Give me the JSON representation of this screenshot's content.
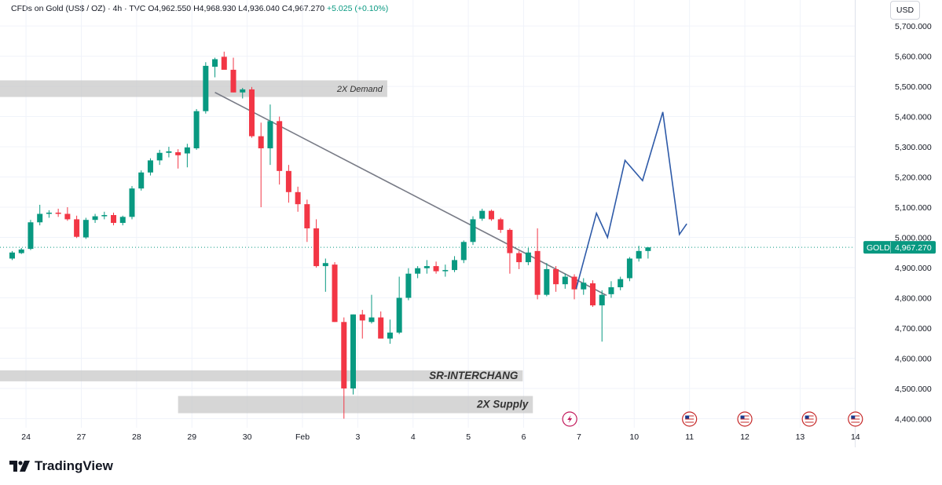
{
  "header": {
    "instrument": "CFDs on Gold (US$ / OZ) · 4h · TVC",
    "open": "O4,962.550",
    "high": "H4,968.930",
    "low": "L4,936.040",
    "close": "C4,967.270",
    "change": "+5.025 (+0.10%)"
  },
  "currency": "USD",
  "brand": "TradingView",
  "price_label": {
    "symbol": "GOLD",
    "value": "4,967.270"
  },
  "colors": {
    "up": "#089981",
    "down": "#f23645",
    "projection": "#2e5aa8",
    "trendline": "#787b86",
    "zone": "#c8c8c8"
  },
  "chart_data": {
    "type": "candlestick",
    "title": "CFDs on Gold (US$ / OZ) 4h",
    "yaxis": {
      "range": [
        4370,
        5760
      ],
      "ticks": [
        "5,700.000",
        "5,600.000",
        "5,500.000",
        "5,400.000",
        "5,300.000",
        "5,200.000",
        "5,100.000",
        "5,000.000",
        "4,900.000",
        "4,800.000",
        "4,700.000",
        "4,600.000",
        "4,500.000",
        "4,400.000"
      ],
      "tick_values": [
        5700,
        5600,
        5500,
        5400,
        5300,
        5200,
        5100,
        5000,
        4900,
        4800,
        4700,
        4600,
        4500,
        4400
      ]
    },
    "xaxis": {
      "labels": [
        {
          "label": "24",
          "bar": 1.5
        },
        {
          "label": "27",
          "bar": 7.5
        },
        {
          "label": "28",
          "bar": 13.5
        },
        {
          "label": "29",
          "bar": 19.5
        },
        {
          "label": "30",
          "bar": 25.5
        },
        {
          "label": "Feb",
          "bar": 31.5
        },
        {
          "label": "3",
          "bar": 37.5
        },
        {
          "label": "4",
          "bar": 43.5
        },
        {
          "label": "5",
          "bar": 49.5
        },
        {
          "label": "6",
          "bar": 55.5
        },
        {
          "label": "7",
          "bar": 61.5
        },
        {
          "label": "10",
          "bar": 67.5
        },
        {
          "label": "11",
          "bar": 73.5
        },
        {
          "label": "12",
          "bar": 79.5
        },
        {
          "label": "13",
          "bar": 85.5
        },
        {
          "label": "14",
          "bar": 91.5
        }
      ]
    },
    "candles": [
      [
        4930,
        4955,
        4925,
        4950
      ],
      [
        4948,
        4965,
        4945,
        4960
      ],
      [
        4962,
        5058,
        4958,
        5050
      ],
      [
        5050,
        5108,
        5040,
        5078
      ],
      [
        5078,
        5090,
        5065,
        5082
      ],
      [
        5082,
        5095,
        5068,
        5078
      ],
      [
        5078,
        5100,
        5055,
        5060
      ],
      [
        5060,
        5072,
        4998,
        5002
      ],
      [
        5000,
        5065,
        4995,
        5058
      ],
      [
        5058,
        5078,
        5048,
        5070
      ],
      [
        5070,
        5085,
        5060,
        5074
      ],
      [
        5074,
        5082,
        5040,
        5048
      ],
      [
        5048,
        5072,
        5040,
        5068
      ],
      [
        5068,
        5170,
        5060,
        5162
      ],
      [
        5162,
        5222,
        5155,
        5215
      ],
      [
        5215,
        5262,
        5205,
        5255
      ],
      [
        5255,
        5290,
        5240,
        5280
      ],
      [
        5280,
        5300,
        5265,
        5285
      ],
      [
        5282,
        5292,
        5228,
        5272
      ],
      [
        5278,
        5310,
        5232,
        5298
      ],
      [
        5295,
        5425,
        5290,
        5418
      ],
      [
        5418,
        5580,
        5410,
        5568
      ],
      [
        5565,
        5595,
        5530,
        5590
      ],
      [
        5598,
        5615,
        5560,
        5555
      ],
      [
        5555,
        5595,
        5480,
        5480
      ],
      [
        5480,
        5495,
        5460,
        5490
      ],
      [
        5490,
        5498,
        5330,
        5335
      ],
      [
        5335,
        5380,
        5100,
        5295
      ],
      [
        5295,
        5440,
        5240,
        5385
      ],
      [
        5385,
        5400,
        5175,
        5220
      ],
      [
        5220,
        5240,
        5115,
        5150
      ],
      [
        5150,
        5168,
        5085,
        5110
      ],
      [
        5110,
        5125,
        4985,
        5030
      ],
      [
        5030,
        5060,
        4900,
        4905
      ],
      [
        4905,
        4930,
        4820,
        4915
      ],
      [
        4910,
        4918,
        4720,
        4720
      ],
      [
        4720,
        4735,
        4400,
        4500
      ],
      [
        4500,
        4745,
        4480,
        4745
      ],
      [
        4745,
        4760,
        4665,
        4725
      ],
      [
        4720,
        4810,
        4715,
        4735
      ],
      [
        4735,
        4755,
        4670,
        4665
      ],
      [
        4665,
        4728,
        4648,
        4685
      ],
      [
        4685,
        4870,
        4680,
        4800
      ],
      [
        4800,
        4898,
        4792,
        4880
      ],
      [
        4880,
        4905,
        4865,
        4898
      ],
      [
        4898,
        4925,
        4880,
        4905
      ],
      [
        4905,
        4920,
        4880,
        4888
      ],
      [
        4888,
        4910,
        4870,
        4892
      ],
      [
        4892,
        4938,
        4885,
        4925
      ],
      [
        4925,
        4990,
        4915,
        4985
      ],
      [
        4985,
        5070,
        4975,
        5060
      ],
      [
        5062,
        5095,
        5055,
        5088
      ],
      [
        5088,
        5092,
        5055,
        5060
      ],
      [
        5060,
        5065,
        5015,
        5025
      ],
      [
        5025,
        5030,
        4880,
        4948
      ],
      [
        4948,
        4955,
        4895,
        4918
      ],
      [
        4918,
        4965,
        4908,
        4950
      ],
      [
        4955,
        5030,
        4795,
        4810
      ],
      [
        4810,
        4915,
        4805,
        4895
      ],
      [
        4895,
        4905,
        4820,
        4845
      ],
      [
        4845,
        4880,
        4830,
        4870
      ],
      [
        4870,
        4878,
        4795,
        4828
      ],
      [
        4828,
        4865,
        4810,
        4850
      ],
      [
        4848,
        4858,
        4770,
        4775
      ],
      [
        4775,
        4825,
        4655,
        4810
      ],
      [
        4812,
        4855,
        4800,
        4835
      ],
      [
        4835,
        4870,
        4825,
        4862
      ],
      [
        4865,
        4935,
        4855,
        4930
      ],
      [
        4930,
        4972,
        4920,
        4955
      ],
      [
        4955,
        4968,
        4930,
        4967
      ]
    ],
    "price_line": 4967.27,
    "trendline": {
      "from": {
        "bar": 22,
        "price": 5480
      },
      "to": {
        "bar": 64.5,
        "price": 4808
      }
    },
    "projection": [
      {
        "bar": 61.2,
        "price": 4830
      },
      {
        "bar": 63.4,
        "price": 5080
      },
      {
        "bar": 64.6,
        "price": 5000
      },
      {
        "bar": 66.5,
        "price": 5255
      },
      {
        "bar": 68.4,
        "price": 5188
      },
      {
        "bar": 70.6,
        "price": 5415
      },
      {
        "bar": 72.4,
        "price": 5010
      },
      {
        "bar": 73.2,
        "price": 5045
      }
    ],
    "zones": [
      {
        "label": "2X Demand",
        "bar_from": -2.2,
        "bar_to": 40.7,
        "price_top": 5520,
        "price_bottom": 5465
      },
      {
        "label": "SR-INTERCHANG",
        "bar_from": -2.2,
        "bar_to": 55.4,
        "price_top": 4560,
        "price_bottom": 4540
      },
      {
        "label": "2X Supply",
        "bar_from": 18.0,
        "bar_to": 56.5,
        "price_top": 4475,
        "price_bottom": 4418
      }
    ],
    "event_icons": [
      {
        "name": "flash-event-icon",
        "bar": 60.5,
        "color": "#c2185b"
      },
      {
        "name": "us-flag-event-icon",
        "bar": 73.5,
        "color": "#c62828"
      },
      {
        "name": "us-flag-event-icon",
        "bar": 79.5,
        "color": "#c62828"
      },
      {
        "name": "us-flag-event-icon",
        "bar": 86.5,
        "color": "#c62828"
      },
      {
        "name": "us-flag-event-icon",
        "bar": 91.5,
        "color": "#c62828"
      }
    ]
  }
}
